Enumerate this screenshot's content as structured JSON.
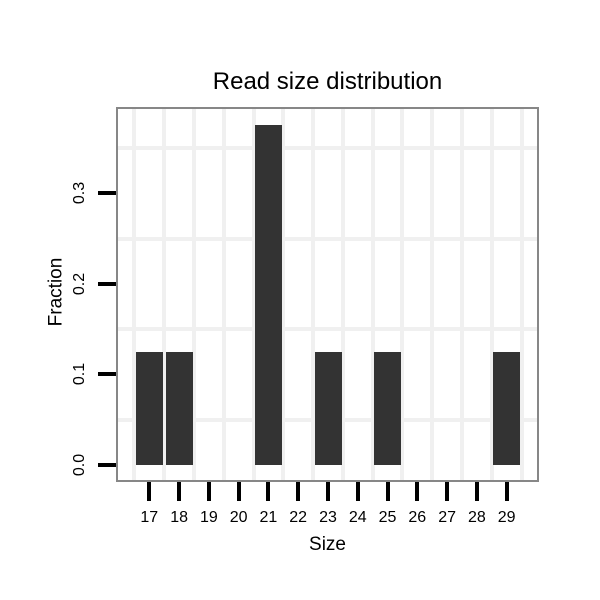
{
  "chart_data": {
    "type": "bar",
    "title": "Read size distribution",
    "xlabel": "Size",
    "ylabel": "Fraction",
    "categories": [
      "17",
      "18",
      "19",
      "20",
      "21",
      "22",
      "23",
      "24",
      "25",
      "26",
      "27",
      "28",
      "29"
    ],
    "values": [
      0.125,
      0.125,
      0,
      0,
      0.375,
      0,
      0.125,
      0,
      0.125,
      0,
      0,
      0,
      0.125
    ],
    "ytick_labels": [
      "0.0",
      "0.1",
      "0.2",
      "0.3"
    ],
    "ytick_values": [
      0.0,
      0.1,
      0.2,
      0.3
    ],
    "minor_gridlines_y": [
      0.05,
      0.15,
      0.25,
      0.35
    ],
    "ylim": [
      -0.02,
      0.395
    ],
    "grid": "minor light-gray gridlines only: horizontal at 0.05 steps between ticks, vertical between categories",
    "legend_position": "none",
    "colors": {
      "bar": "#333333",
      "panel_border": "#878787",
      "gridline": "#f0f0f0",
      "axis_tick": "#000000",
      "text": "#000000",
      "background": "#ffffff",
      "panel_background": "#ffffff"
    }
  }
}
